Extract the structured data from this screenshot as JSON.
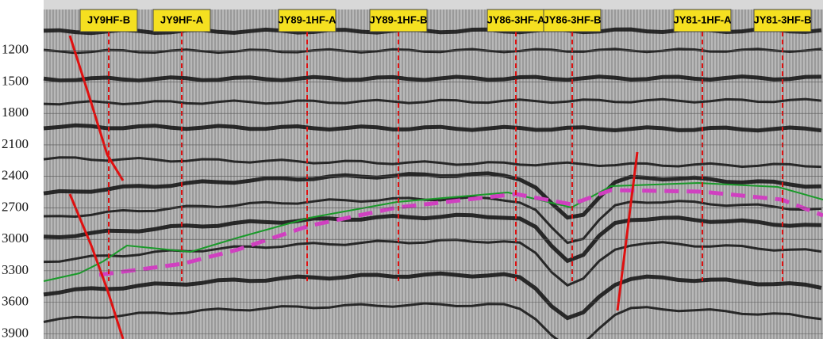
{
  "depth_axis": {
    "lim": [
      810,
      3950
    ],
    "ticks": [
      1200,
      1500,
      1800,
      2100,
      2400,
      2700,
      3000,
      3300,
      3600,
      3900
    ]
  },
  "wells": [
    "JY9HF-B",
    "JY9HF-A",
    "JY89-1HF-A",
    "JY89-1HF-B",
    "JY86-3HF-A",
    "JY86-3HF-B",
    "JY81-1HF-A",
    "JY81-3HF-B"
  ]
}
